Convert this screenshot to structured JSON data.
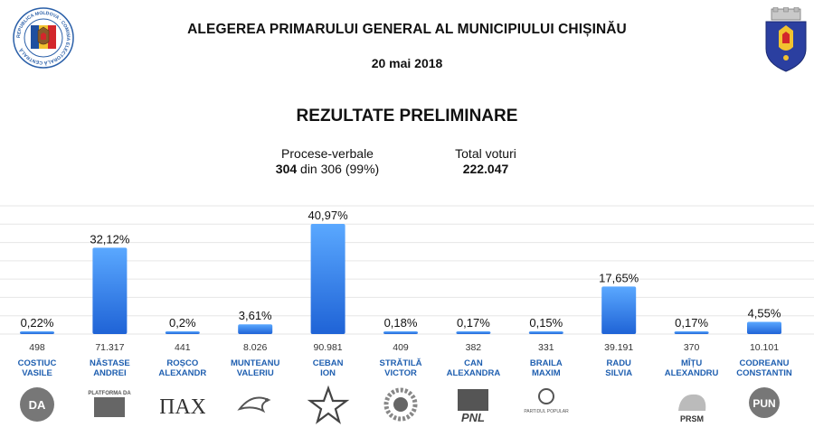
{
  "header": {
    "title": "ALEGEREA PRIMARULUI GENERAL AL MUNICIPIULUI CHIȘINĂU",
    "date": "20 mai 2018",
    "subtitle": "REZULTATE PRELIMINARE",
    "cec_logo_text": "REPUBLICA MOLDOVA · COMISIA ELECTORALĂ CENTRALĂ"
  },
  "stats": {
    "proc_label": "Procese-verbale",
    "proc_counted": "304",
    "proc_rest": "din 306 (99%)",
    "votes_label": "Total voturi",
    "votes_value": "222.047"
  },
  "party_logos": [
    {
      "icon": "da-circle-icon",
      "text": "DA"
    },
    {
      "icon": "platforma-da-icon",
      "text": "PLATFORMA DA"
    },
    {
      "icon": "nah-icon",
      "text": "ПАХ"
    },
    {
      "icon": "bird-icon",
      "text": ""
    },
    {
      "icon": "star-icon",
      "text": ""
    },
    {
      "icon": "sunflower-icon",
      "text": ""
    },
    {
      "icon": "pnl-icon",
      "text": "PNL"
    },
    {
      "icon": "apple-icon",
      "text": "PARTIDUL POPULAR"
    },
    {
      "icon": "",
      "text": ""
    },
    {
      "icon": "bear-icon",
      "text": "PRSM"
    },
    {
      "icon": "pun-icon",
      "text": "PUN"
    }
  ],
  "chart_data": {
    "type": "bar",
    "ylim": [
      0,
      47
    ],
    "grid": true,
    "candidates": [
      {
        "last": "COSTIUC",
        "first": "VASILE",
        "percent": 0.22,
        "percent_label": "0,22%",
        "votes": "498"
      },
      {
        "last": "NĂSTASE",
        "first": "ANDREI",
        "percent": 32.12,
        "percent_label": "32,12%",
        "votes": "71.317"
      },
      {
        "last": "ROȘCO",
        "first": "ALEXANDR",
        "percent": 0.2,
        "percent_label": "0,2%",
        "votes": "441"
      },
      {
        "last": "MUNTEANU",
        "first": "VALERIU",
        "percent": 3.61,
        "percent_label": "3,61%",
        "votes": "8.026"
      },
      {
        "last": "CEBAN",
        "first": "ION",
        "percent": 40.97,
        "percent_label": "40,97%",
        "votes": "90.981"
      },
      {
        "last": "STRĂTILĂ",
        "first": "VICTOR",
        "percent": 0.18,
        "percent_label": "0,18%",
        "votes": "409"
      },
      {
        "last": "CAN",
        "first": "ALEXANDRA",
        "percent": 0.17,
        "percent_label": "0,17%",
        "votes": "382"
      },
      {
        "last": "BRAILA",
        "first": "MAXIM",
        "percent": 0.15,
        "percent_label": "0,15%",
        "votes": "331"
      },
      {
        "last": "RADU",
        "first": "SILVIA",
        "percent": 17.65,
        "percent_label": "17,65%",
        "votes": "39.191"
      },
      {
        "last": "MÎȚU",
        "first": "ALEXANDRU",
        "percent": 0.17,
        "percent_label": "0,17%",
        "votes": "370"
      },
      {
        "last": "CODREANU",
        "first": "CONSTANTIN",
        "percent": 4.55,
        "percent_label": "4,55%",
        "votes": "10.101"
      }
    ],
    "colors": {
      "bar_top": "#5aa8ff",
      "bar_bottom": "#1f63d6",
      "name": "#1f5fb0",
      "grid": "#e6e6e6"
    }
  }
}
